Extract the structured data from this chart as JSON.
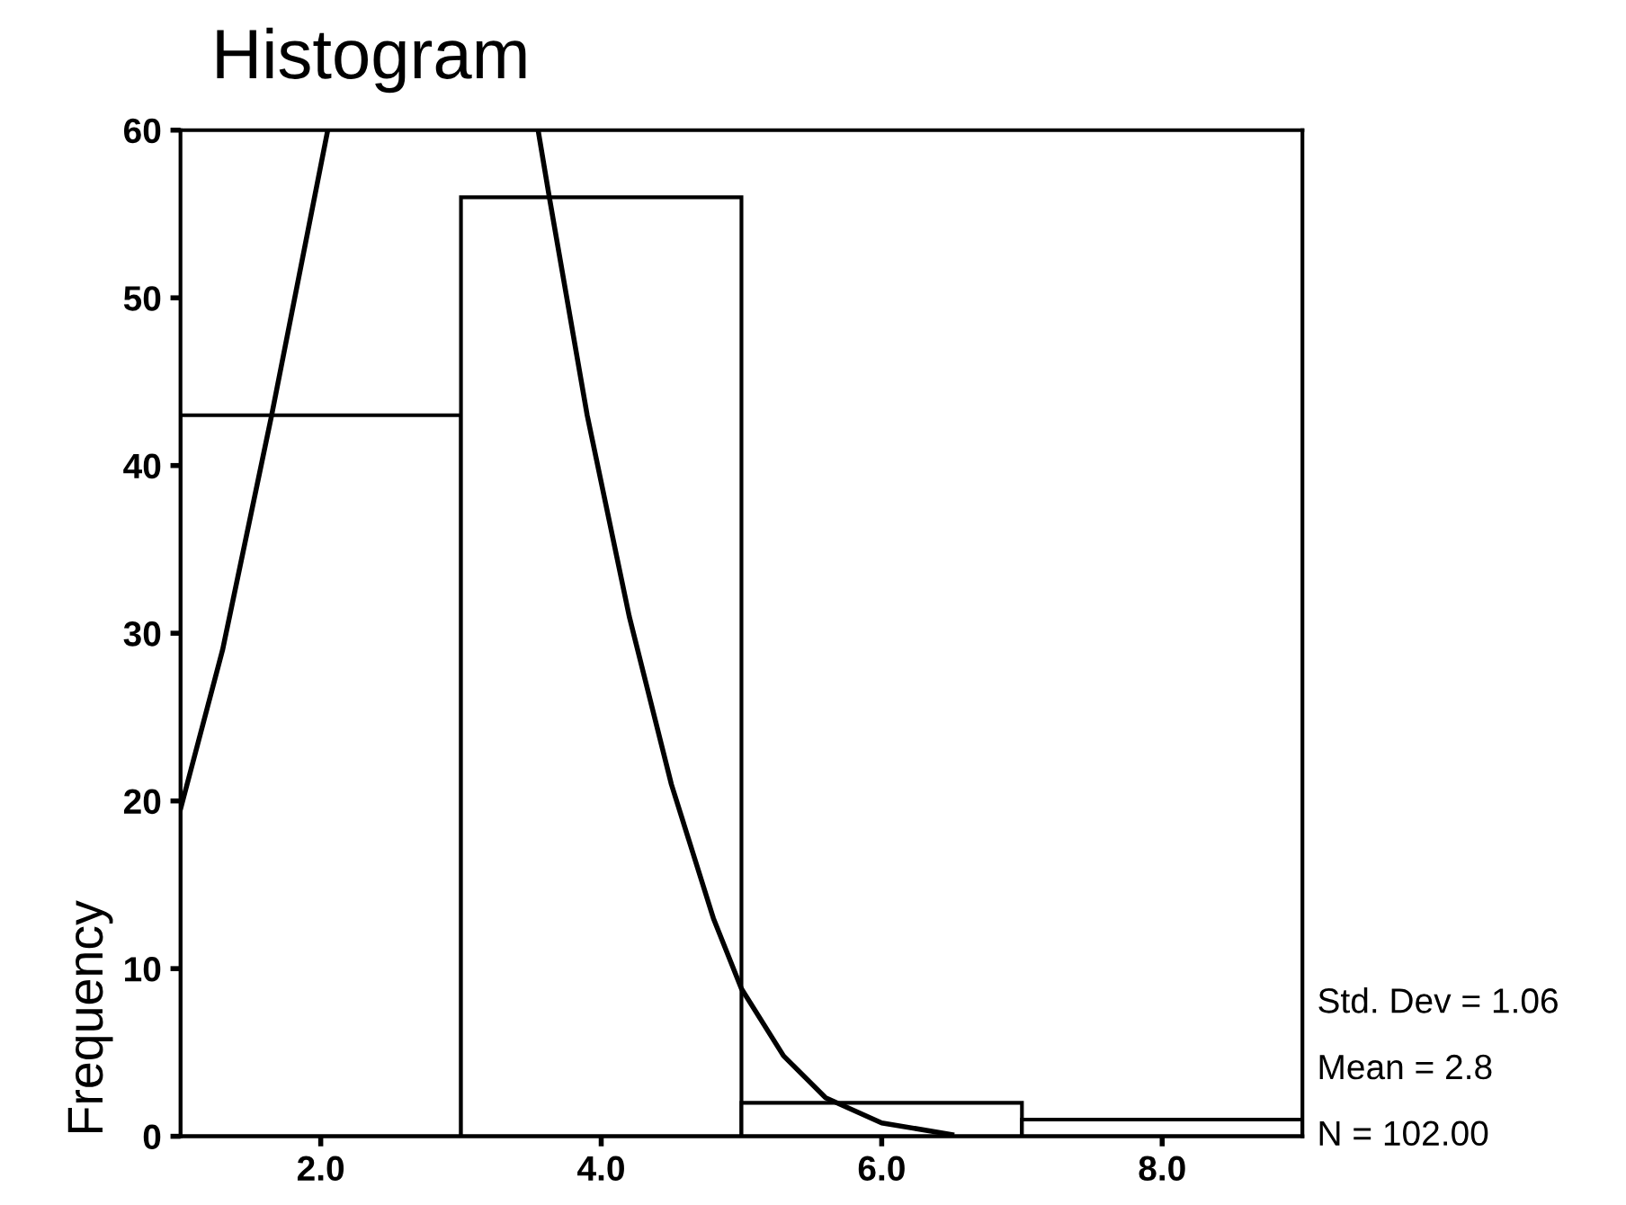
{
  "chart_data": {
    "type": "histogram",
    "title": "Histogram",
    "ylabel": "Frequency",
    "bins": [
      1,
      3,
      5,
      7,
      9
    ],
    "values": [
      43,
      56,
      2,
      1
    ],
    "color": "#ffffff",
    "series": [
      {
        "type": "line",
        "color": "#000000",
        "x": [
          1.0,
          1.3,
          1.65,
          2.05,
          2.8,
          3.55,
          3.63,
          3.9,
          4.2,
          4.5,
          4.8,
          5.0,
          5.3,
          5.6,
          6.0,
          6.5
        ],
        "values": [
          19.5,
          29,
          43,
          60,
          null,
          60,
          56,
          43,
          31,
          21,
          13,
          8.8,
          4.8,
          2.3,
          0.8,
          0.1
        ]
      }
    ],
    "xlim": [
      1,
      9
    ],
    "xticks": [
      {
        "value": 2,
        "label": "2.0"
      },
      {
        "value": 4,
        "label": "4.0"
      },
      {
        "value": 6,
        "label": "6.0"
      },
      {
        "value": 8,
        "label": "8.0"
      }
    ],
    "ylim": [
      0,
      60
    ],
    "yticks": [
      0,
      10,
      20,
      30,
      40,
      50,
      60
    ],
    "grid": false,
    "legend": false,
    "annotations": [
      "Std. Dev = 1.06",
      "Mean = 2.8",
      "N = 102.00"
    ]
  }
}
